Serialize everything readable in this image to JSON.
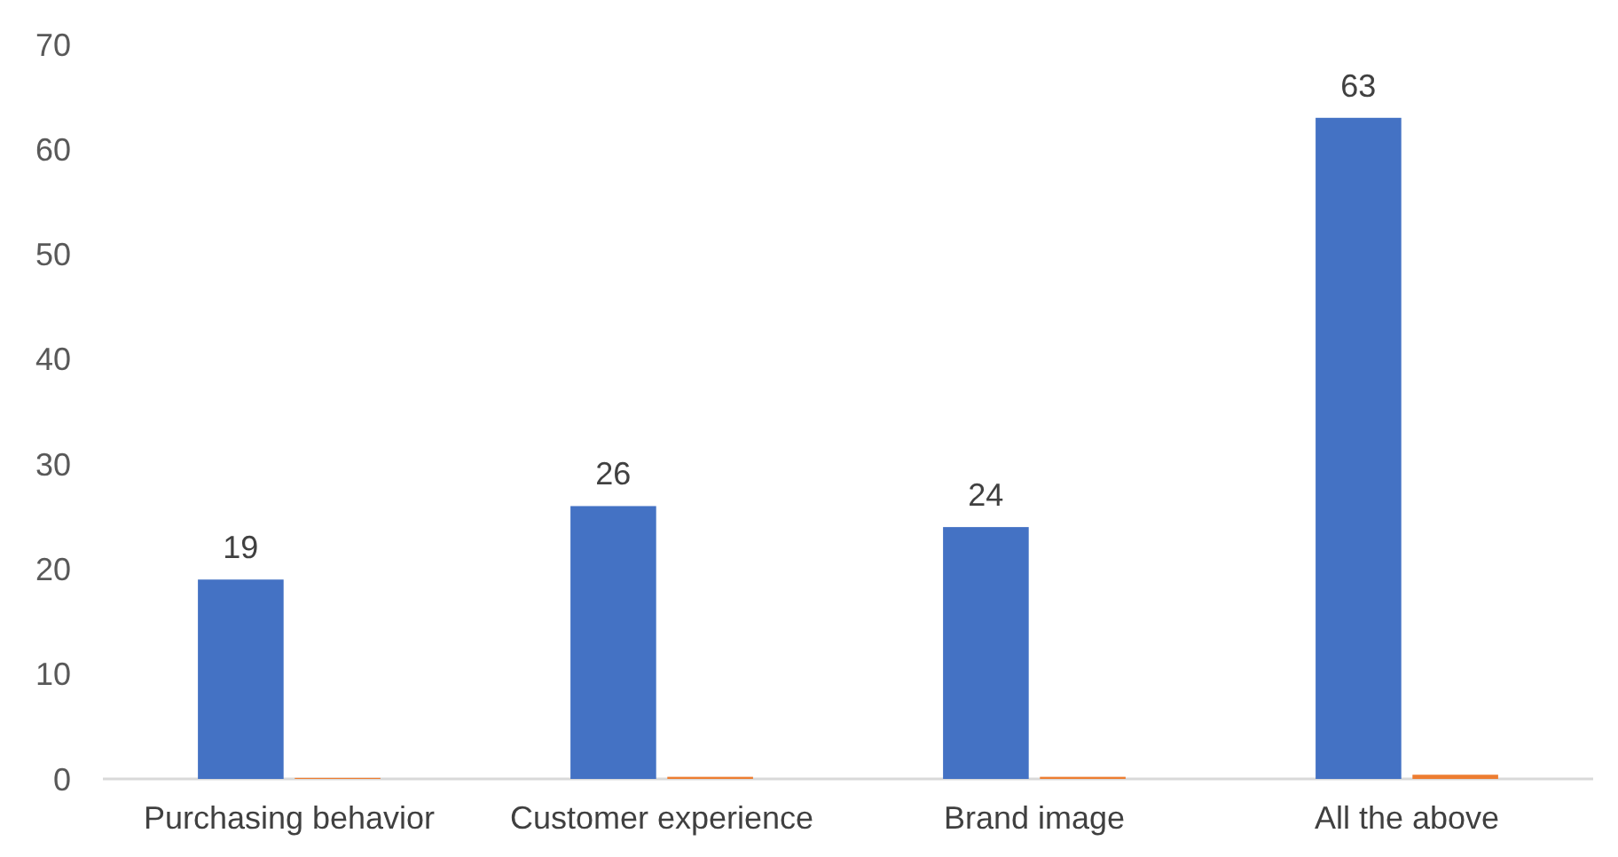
{
  "chart_data": {
    "type": "bar",
    "categories": [
      "Purchasing behavior",
      "Customer experience",
      "Brand image",
      "All the above"
    ],
    "series": [
      {
        "color": "#4472c4",
        "values": [
          19,
          26,
          24,
          63
        ],
        "value_labels": [
          "19",
          "26",
          "24",
          "63"
        ]
      },
      {
        "color": "#ed7d31",
        "values": [
          0.1,
          0.2,
          0.2,
          0.4
        ]
      }
    ],
    "ylim": [
      0,
      70
    ],
    "yticks": [
      0,
      10,
      20,
      30,
      40,
      50,
      60,
      70
    ]
  }
}
